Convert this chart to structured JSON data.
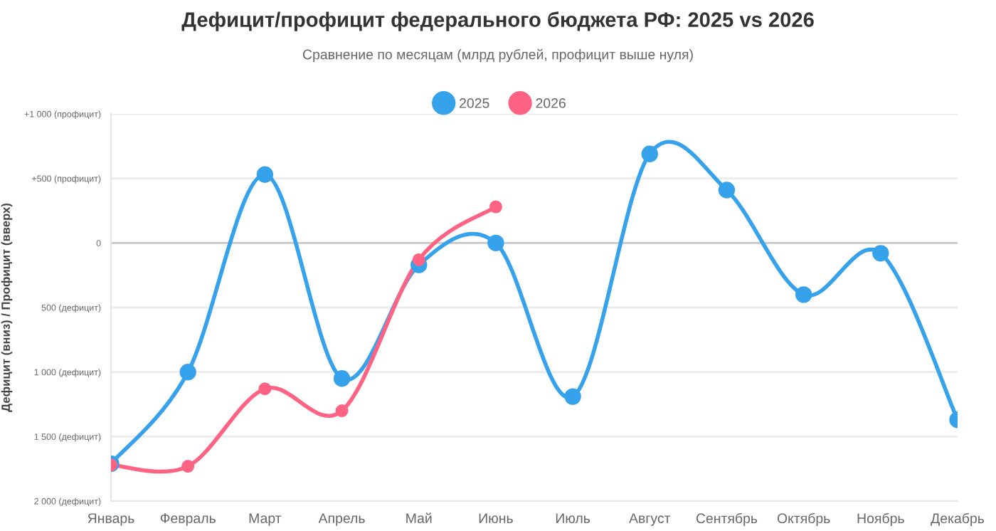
{
  "chart_data": {
    "type": "line",
    "title": "Дефицит/профицит федерального бюджета РФ: 2025 vs 2026",
    "subtitle": "Сравнение по месяцам (млрд рублей, профицит выше нуля)",
    "ylabel": "Дефицит (вниз) / Профицит (вверх)",
    "categories": [
      "Январь",
      "Февраль",
      "Март",
      "Апрель",
      "Май",
      "Июнь",
      "Июль",
      "Август",
      "Сентябрь",
      "Октябрь",
      "Ноябрь",
      "Декабрь"
    ],
    "series": [
      {
        "name": "2025",
        "color": "#36a2eb",
        "values": [
          -1710,
          -1000,
          530,
          -1050,
          -170,
          0,
          -1190,
          690,
          410,
          -400,
          -80,
          -1370
        ]
      },
      {
        "name": "2026",
        "color": "#ff6384",
        "values": [
          -1720,
          -1730,
          -1130,
          -1300,
          -130,
          280,
          null,
          null,
          null,
          null,
          null,
          null
        ]
      }
    ],
    "ylim": [
      -2000,
      1000
    ],
    "yticks": [
      {
        "value": 1000,
        "label": "+1 000 (профицит)"
      },
      {
        "value": 500,
        "label": "+500 (профицит)"
      },
      0,
      {
        "value": -500,
        "label": "500 (дефицит)"
      },
      {
        "value": -1000,
        "label": "1 000 (дефицит)"
      },
      {
        "value": -1500,
        "label": "1 500 (дефицит)"
      },
      {
        "value": -2000,
        "label": "2 000 (дефицит)"
      }
    ],
    "grid": "y",
    "legend": "top",
    "marker": "circle",
    "line_style": "solid"
  }
}
